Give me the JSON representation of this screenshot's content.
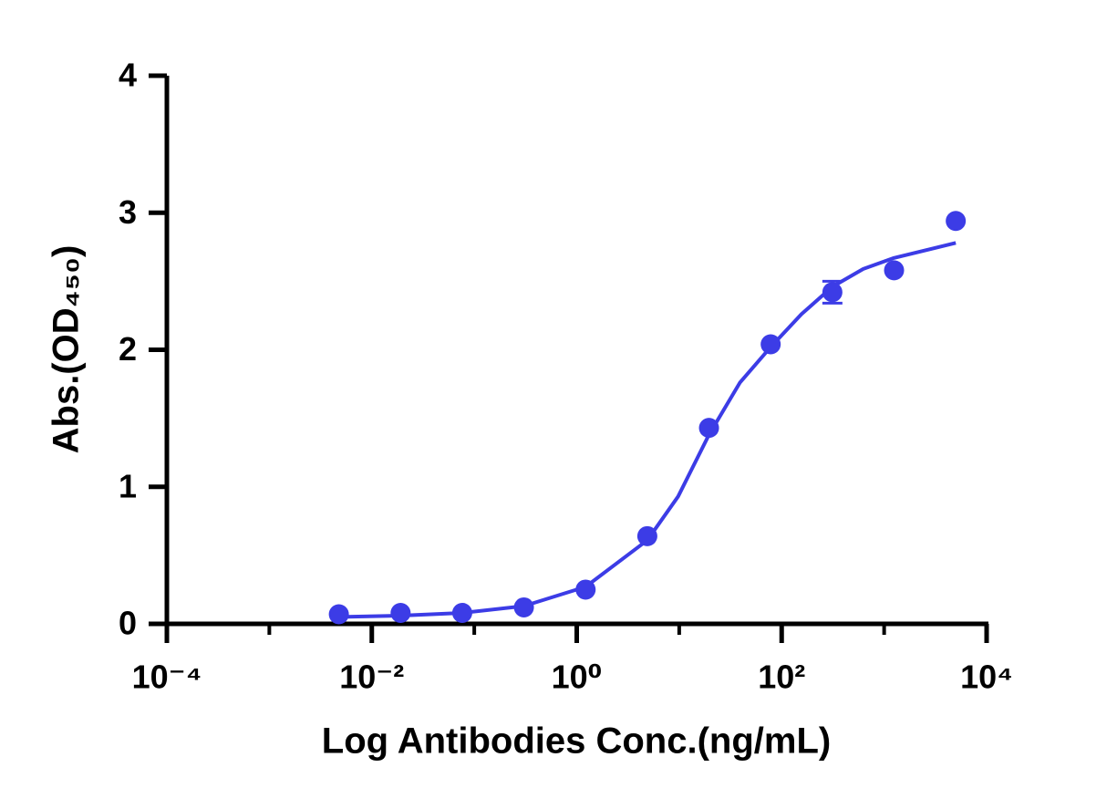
{
  "chart_data": {
    "type": "scatter",
    "x_label": "Log Antibodies Conc.(ng/mL)",
    "y_label": "Abs.(OD₄₅₀)",
    "x_scale": "log",
    "color": "#3c3ce6",
    "x": [
      0.00477,
      0.0191,
      0.0763,
      0.305,
      1.221,
      4.883,
      19.53,
      78.125,
      312.5,
      1250,
      5000
    ],
    "values": [
      0.07,
      0.08,
      0.08,
      0.12,
      0.25,
      0.64,
      1.43,
      2.04,
      2.42,
      2.58,
      2.94
    ],
    "errors": [
      null,
      null,
      null,
      null,
      null,
      null,
      null,
      null,
      0.08,
      null,
      null
    ],
    "fit": {
      "x": [
        0.00477,
        0.0191,
        0.0763,
        0.305,
        1.221,
        4.883,
        9.766,
        19.53,
        39.06,
        78.125,
        156.25,
        312.5,
        625,
        1250,
        5000
      ],
      "values": [
        0.05,
        0.06,
        0.08,
        0.13,
        0.27,
        0.61,
        0.93,
        1.38,
        1.76,
        2.02,
        2.26,
        2.46,
        2.59,
        2.67,
        2.78
      ]
    },
    "xlim": [
      0.0001,
      10000
    ],
    "xticks": [
      {
        "value": 0.0001,
        "label": "10⁻⁴"
      },
      {
        "value": 0.01,
        "label": "10⁻²"
      },
      {
        "value": 1,
        "label": "10⁰"
      },
      {
        "value": 100,
        "label": "10²"
      },
      {
        "value": 10000,
        "label": "10⁴"
      }
    ],
    "xminor_ticks": [
      0.001,
      0.1,
      10,
      1000
    ],
    "ylim": [
      0,
      4
    ],
    "yticks": [
      0,
      1,
      2,
      3,
      4
    ]
  }
}
